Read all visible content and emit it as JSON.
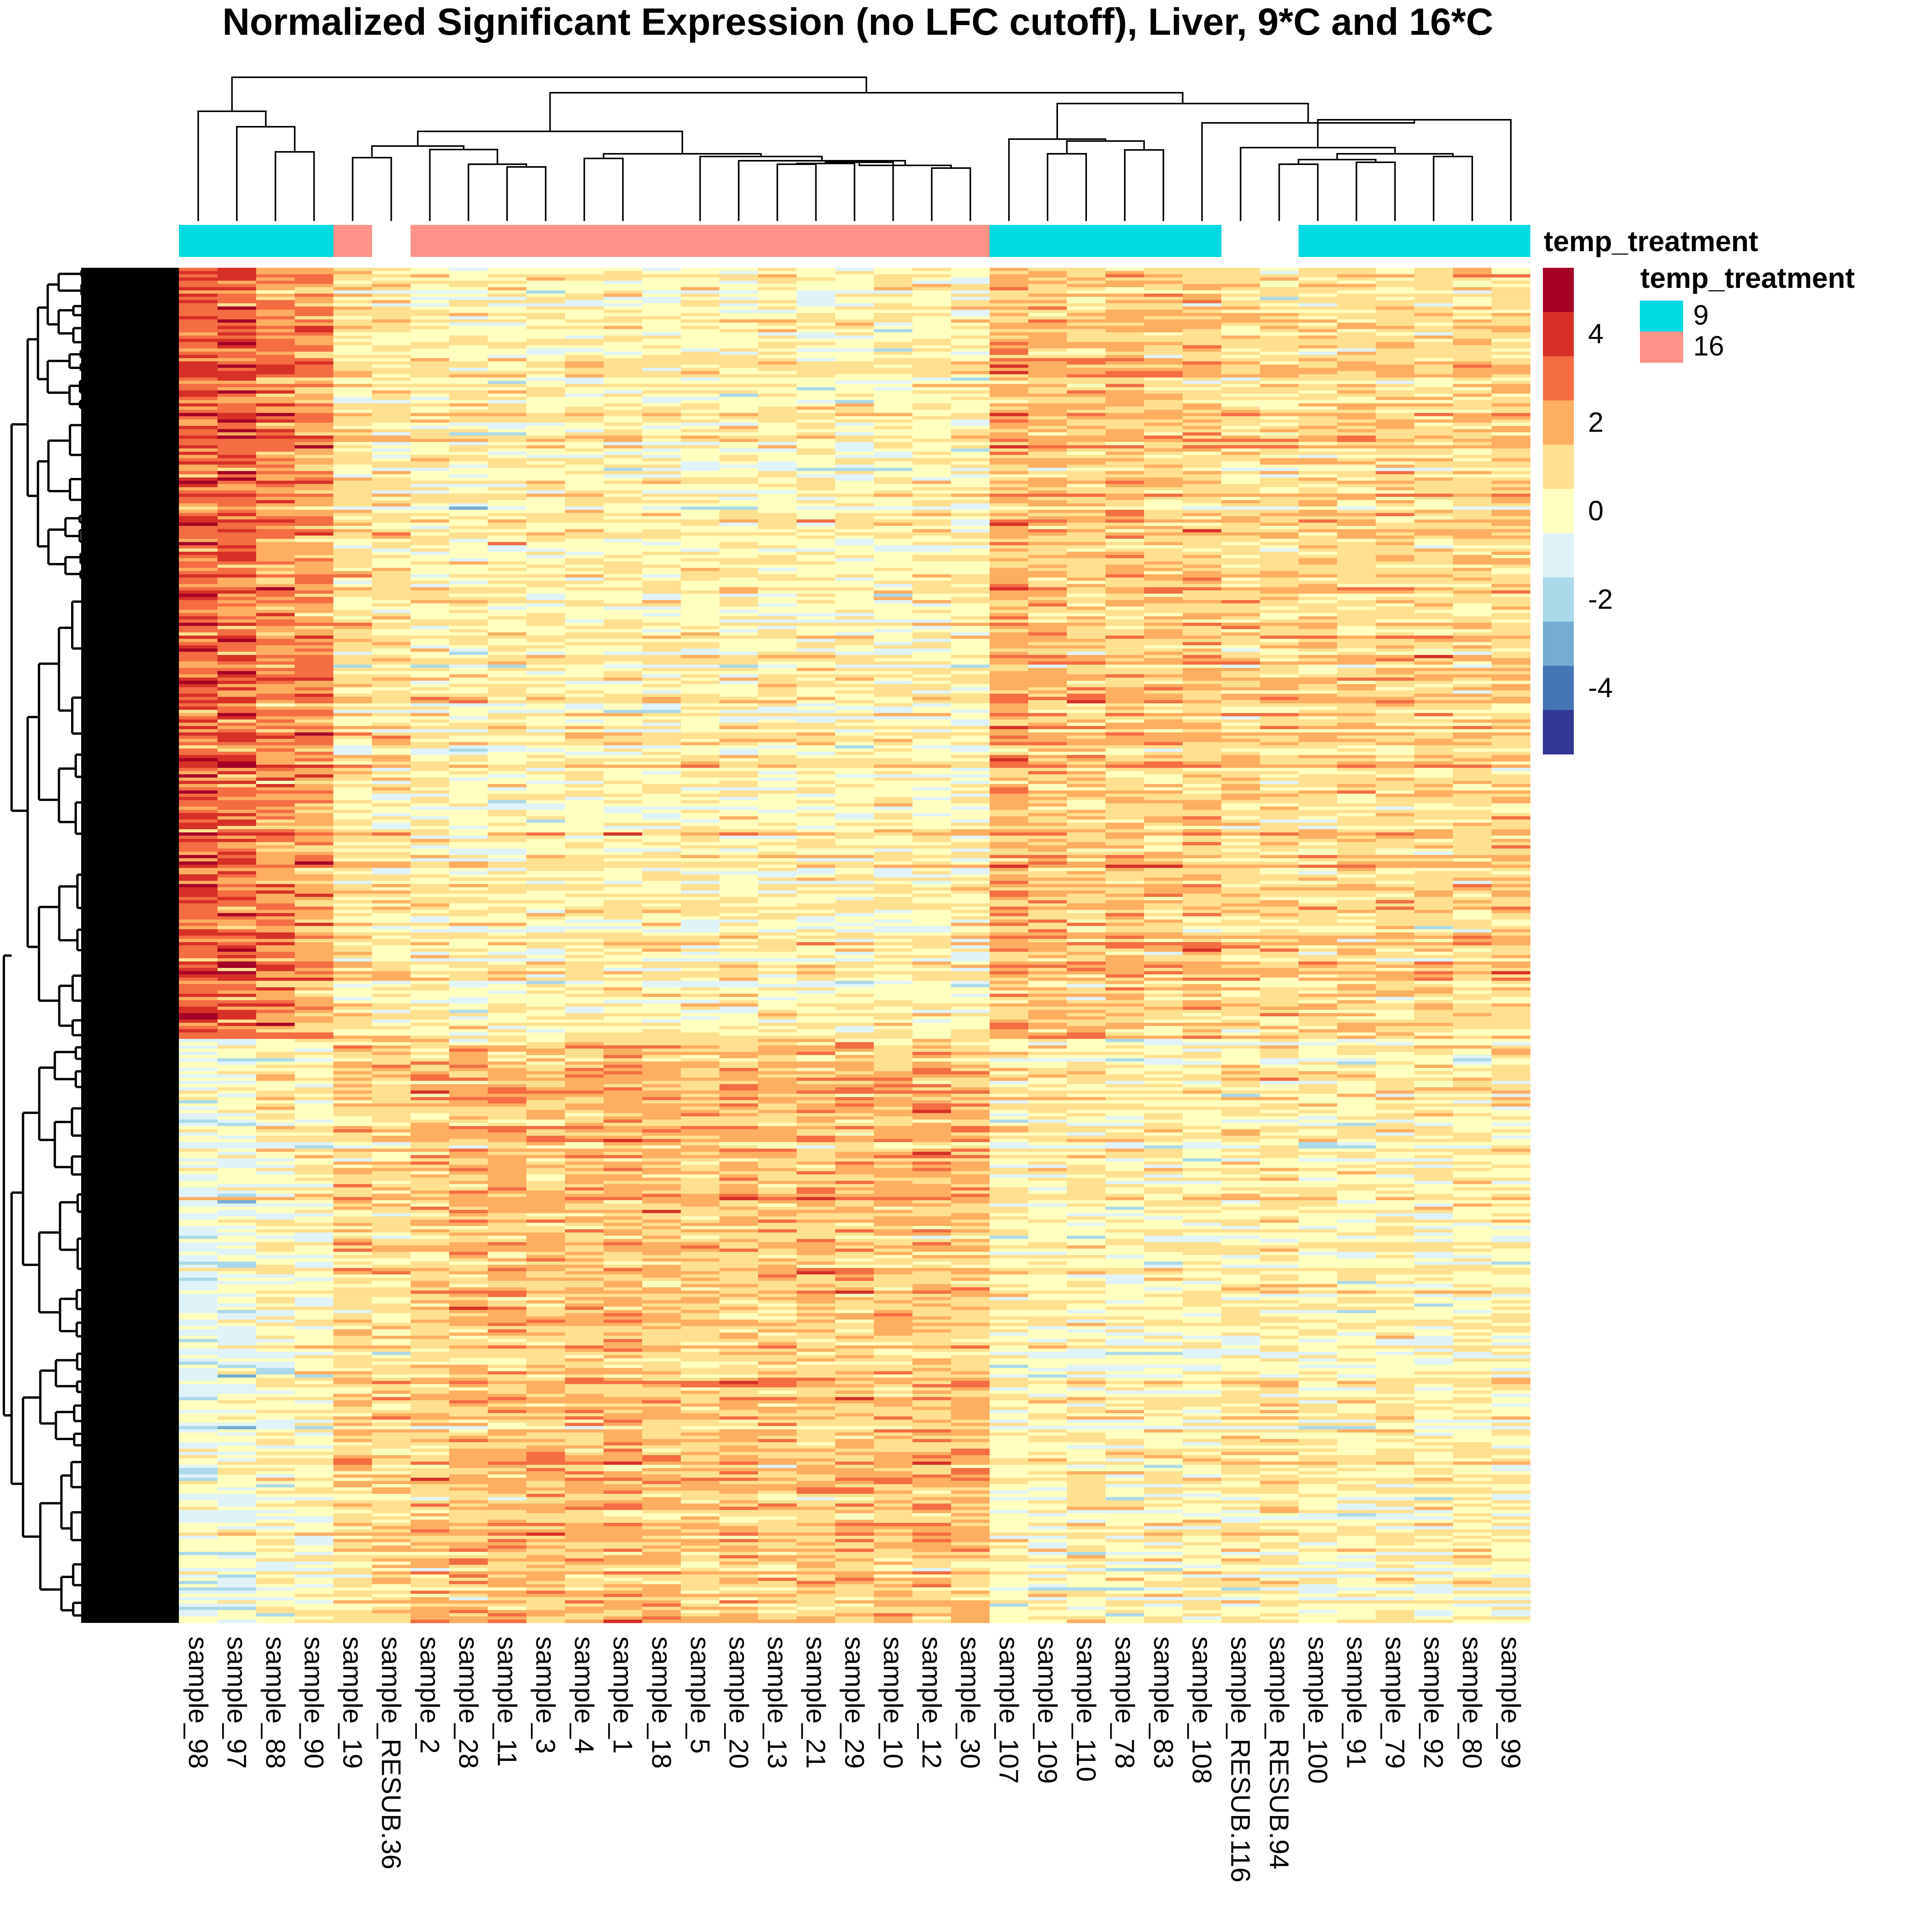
{
  "chart_data": {
    "type": "heatmap",
    "title": "Normalized Significant Expression (no LFC cutoff), Liver, 9*C and 16*C",
    "columns": [
      "sample_98",
      "sample_97",
      "sample_88",
      "sample_90",
      "sample_19",
      "sample_RESUB.36",
      "sample_2",
      "sample_28",
      "sample_11",
      "sample_3",
      "sample_4",
      "sample_1",
      "sample_18",
      "sample_5",
      "sample_20",
      "sample_13",
      "sample_21",
      "sample_29",
      "sample_10",
      "sample_12",
      "sample_30",
      "sample_107",
      "sample_109",
      "sample_110",
      "sample_78",
      "sample_83",
      "sample_108",
      "sample_RESUB.116",
      "sample_RESUB.94",
      "sample_100",
      "sample_91",
      "sample_79",
      "sample_92",
      "sample_80",
      "sample_99"
    ],
    "annotation": {
      "name": "temp_treatment",
      "values": [
        "9",
        "9",
        "9",
        "9",
        "16",
        "",
        "16",
        "16",
        "16",
        "16",
        "16",
        "16",
        "16",
        "16",
        "16",
        "16",
        "16",
        "16",
        "16",
        "16",
        "16",
        "9",
        "9",
        "9",
        "9",
        "9",
        "9",
        "",
        "",
        "9",
        "9",
        "9",
        "9",
        "9",
        "9"
      ],
      "levels": [
        {
          "label": "9",
          "color": "#00DAE0"
        },
        {
          "label": "16",
          "color": "#FF9289"
        }
      ]
    },
    "row_blocks": [
      {
        "name": "upper-block",
        "fraction": 0.57,
        "mean_by_column": [
          3.2,
          3.0,
          2.2,
          2.0,
          0.2,
          0.1,
          -0.2,
          -0.3,
          -0.3,
          -0.3,
          -0.2,
          -0.3,
          -0.3,
          -0.2,
          -0.3,
          -0.3,
          -0.3,
          -0.4,
          -0.3,
          -0.3,
          -0.3,
          1.6,
          1.2,
          1.0,
          1.1,
          0.9,
          1.1,
          0.5,
          0.5,
          0.6,
          0.7,
          0.6,
          0.6,
          0.6,
          0.8
        ]
      },
      {
        "name": "lower-block",
        "fraction": 0.43,
        "mean_by_column": [
          -1.2,
          -1.1,
          -0.6,
          -0.5,
          0.6,
          0.5,
          1.0,
          1.1,
          1.2,
          1.0,
          1.3,
          1.3,
          1.2,
          0.8,
          1.1,
          1.0,
          1.0,
          1.1,
          1.1,
          1.2,
          1.2,
          -0.4,
          -0.4,
          -0.3,
          -0.5,
          -0.4,
          -0.4,
          -0.2,
          -0.1,
          -0.4,
          -0.4,
          -0.3,
          -0.4,
          -0.3,
          -0.3
        ]
      }
    ],
    "color_scale": {
      "breaks": [
        -6,
        -5,
        -4,
        -3,
        -2,
        -1,
        0,
        1,
        2,
        3,
        4,
        5
      ],
      "colors": [
        "#313695",
        "#4575B4",
        "#74ADD1",
        "#ABD9E9",
        "#E0F3F8",
        "#FFFFBF",
        "#FEE090",
        "#FDAE61",
        "#F46D43",
        "#D73027",
        "#A50026"
      ],
      "tick_labels": [
        "4",
        "2",
        "0",
        "-2",
        "-4"
      ],
      "tick_values": [
        4,
        2,
        0,
        -2,
        -4
      ]
    },
    "legend_title_bar": "temp_treatment",
    "legend_title_side": "temp_treatment",
    "column_dendrogram": true,
    "row_dendrogram": true,
    "grid": false
  }
}
